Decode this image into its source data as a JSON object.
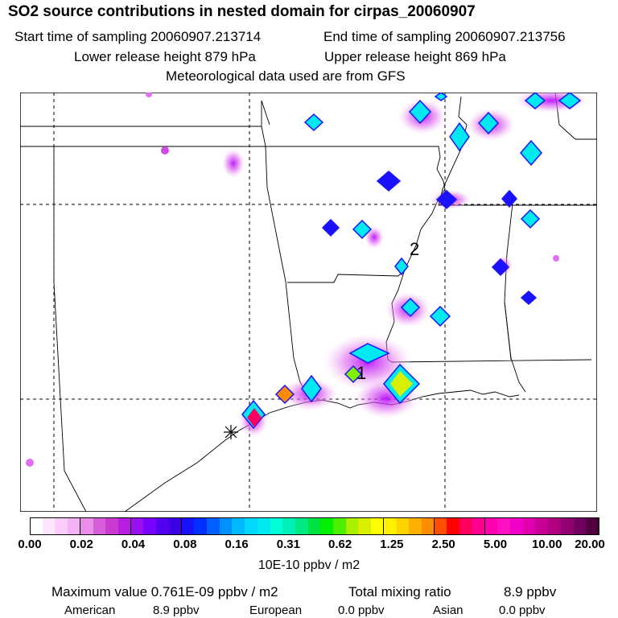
{
  "header": {
    "title": "SO2 source contributions in nested domain for cirpas_20060907",
    "start_label": "Start time of sampling 20060907.213714",
    "end_label": "End time of sampling 20060907.213756",
    "lower_label": "Lower release height  879 hPa",
    "upper_label": "Upper release height  869 hPa",
    "met_label": "Meteorological data used are from GFS"
  },
  "map": {
    "markers": [
      "1",
      "2"
    ]
  },
  "colorbar": {
    "tick_labels": [
      "0.00",
      "0.02",
      "0.04",
      "0.08",
      "0.16",
      "0.31",
      "0.62",
      "1.25",
      "2.50",
      "5.00",
      "10.00",
      "20.00"
    ],
    "unit": "10E-10 ppbv / m2",
    "colors": [
      "#ffffff",
      "#fde6fd",
      "#f9ccf9",
      "#f3b3f5",
      "#e98de9",
      "#d65ed9",
      "#c93ad0",
      "#b71ee0",
      "#9a0ff0",
      "#7a00ff",
      "#5200f0",
      "#3c00e6",
      "#1a12ff",
      "#0030ff",
      "#0060ff",
      "#0090ff",
      "#00b8ff",
      "#00d8ff",
      "#00e8f0",
      "#00ffd9",
      "#00f0b8",
      "#00e880",
      "#00e040",
      "#00f000",
      "#4cf000",
      "#a8f000",
      "#d8f000",
      "#ffff00",
      "#fff000",
      "#ffd200",
      "#ffb000",
      "#ff8c00",
      "#ff5000",
      "#ff0000",
      "#ff0060",
      "#ff0090",
      "#ff00b0",
      "#ff10c0",
      "#f000c8",
      "#e000b0",
      "#c80096",
      "#b00080",
      "#900070",
      "#700060",
      "#500040"
    ]
  },
  "footer": {
    "max_label": "Maximum value  0.761E-09 ppbv / m2",
    "total_label": "Total mixing ratio",
    "total_value": "8.9 ppbv",
    "american_label": "American",
    "american_value": "8.9 ppbv",
    "european_label": "European",
    "european_value": "0.0 ppbv",
    "asian_label": "Asian",
    "asian_value": "0.0 ppbv"
  }
}
